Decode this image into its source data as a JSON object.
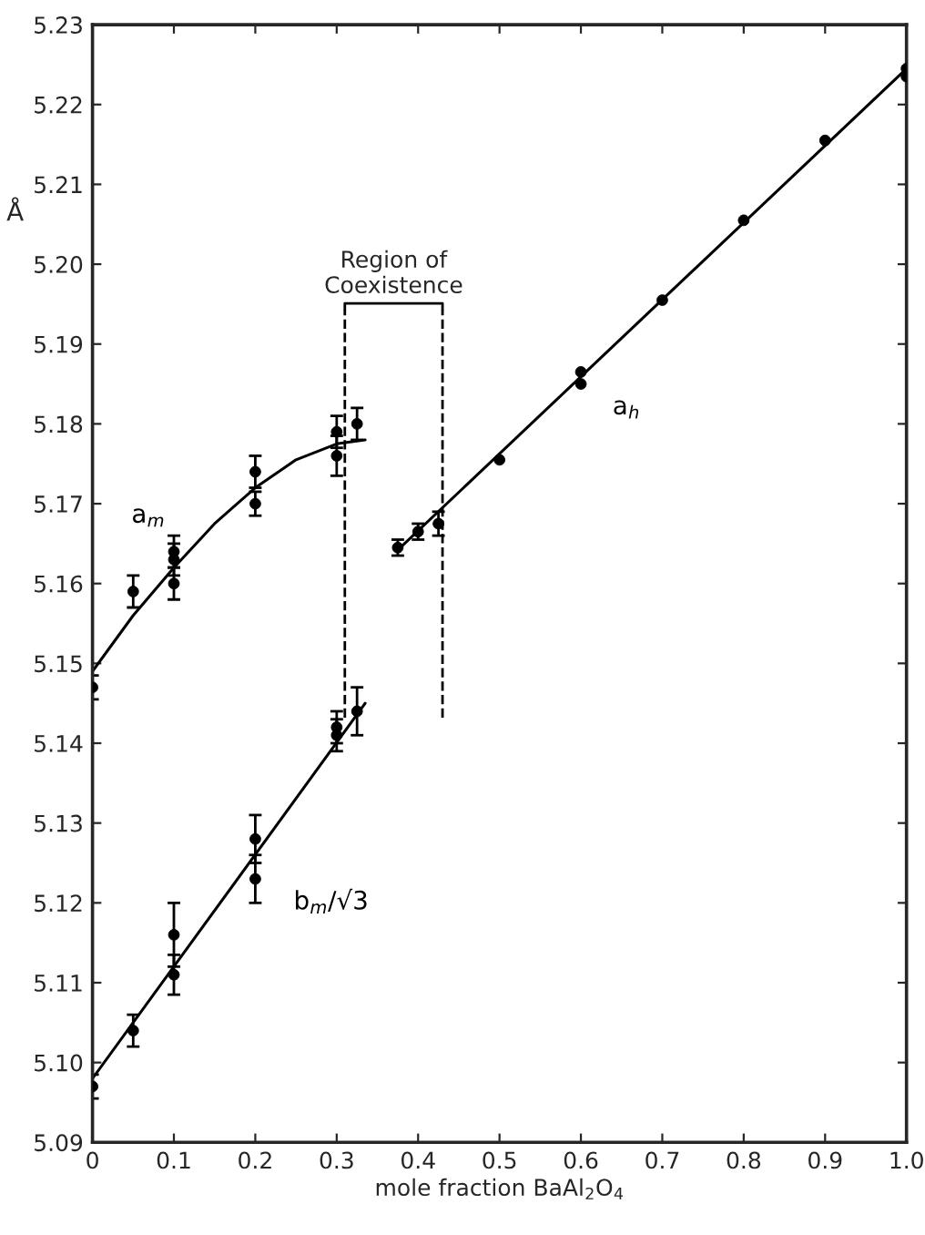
{
  "chart_data": {
    "type": "scatter",
    "xlabel": "mole fraction BaAl$_{2}$O$_{4}$",
    "ylabel": "Å",
    "marker": "circle",
    "grid": false,
    "legend": false,
    "xlim": [
      0,
      1.0
    ],
    "ylim": [
      5.09,
      5.23
    ],
    "xticks": [
      0,
      0.1,
      0.2,
      0.3,
      0.4,
      0.5,
      0.6,
      0.7,
      0.8,
      0.9,
      {
        "value": 1.0,
        "label": "1.0"
      }
    ],
    "yticks": [
      5.09,
      {
        "value": 5.1,
        "label": "5.10"
      },
      5.11,
      5.12,
      5.13,
      5.14,
      5.15,
      5.16,
      5.17,
      5.18,
      5.19,
      {
        "value": 5.2,
        "label": "5.20"
      },
      5.21,
      5.22,
      5.23
    ],
    "series": [
      {
        "name": "a$_{m}$",
        "color": "#000000",
        "x": [
          0,
          0.05,
          0.1,
          0.1,
          0.1,
          0.2,
          0.2,
          0.3,
          0.3,
          0.325
        ],
        "values": [
          5.147,
          5.159,
          5.164,
          5.163,
          5.16,
          5.174,
          5.17,
          5.179,
          5.176,
          5.18
        ],
        "errors": [
          0.0015,
          0.002,
          0.002,
          0.002,
          0.002,
          0.002,
          0.0015,
          0.002,
          0.0025,
          0.002
        ]
      },
      {
        "name": "b$_{m}$/√3",
        "type": "scatter",
        "color": "#000000",
        "x": [
          0,
          0.05,
          0.1,
          0.1,
          0.2,
          0.2,
          0.3,
          0.3,
          0.325
        ],
        "values": [
          5.097,
          5.104,
          5.116,
          5.111,
          5.128,
          5.123,
          5.142,
          5.141,
          5.144
        ],
        "errors": [
          0.0015,
          0.002,
          0.004,
          0.0025,
          0.003,
          0.003,
          0.002,
          0.002,
          0.003
        ]
      },
      {
        "name": "a$_{h}$",
        "type": "scatter",
        "color": "#000000",
        "x": [
          0.375,
          0.4,
          0.425,
          0.5,
          0.6,
          0.6,
          0.7,
          0.8,
          0.9,
          1.0,
          1.0
        ],
        "values": [
          5.1645,
          5.1665,
          5.1675,
          5.1755,
          5.1865,
          5.185,
          5.1955,
          5.2055,
          5.2155,
          5.2245,
          5.2235
        ],
        "errors": [
          0.001,
          0.001,
          0.0015,
          null,
          null,
          null,
          null,
          null,
          null,
          null,
          null
        ]
      },
      {
        "type": "line",
        "color": "#000000",
        "marker": "none",
        "x": [
          0,
          0.05,
          0.1,
          0.15,
          0.2,
          0.25,
          0.3,
          0.335
        ],
        "values": [
          5.149,
          5.156,
          5.162,
          5.1675,
          5.172,
          5.1755,
          5.1775,
          5.178
        ]
      },
      {
        "type": "line",
        "color": "#000000",
        "marker": "none",
        "x": [
          0,
          0.335
        ],
        "values": [
          5.098,
          5.145
        ]
      },
      {
        "type": "line",
        "color": "#000000",
        "marker": "none",
        "x": [
          0.375,
          1.0
        ],
        "values": [
          5.1642,
          5.2245
        ]
      }
    ],
    "ref_lines": [
      {
        "axis": "x",
        "value": 0.31,
        "line_style": "dashed"
      },
      {
        "axis": "x",
        "value": 0.43,
        "line_style": "dashed"
      }
    ],
    "annotations": [
      "Region of\nCoexistence"
    ]
  }
}
